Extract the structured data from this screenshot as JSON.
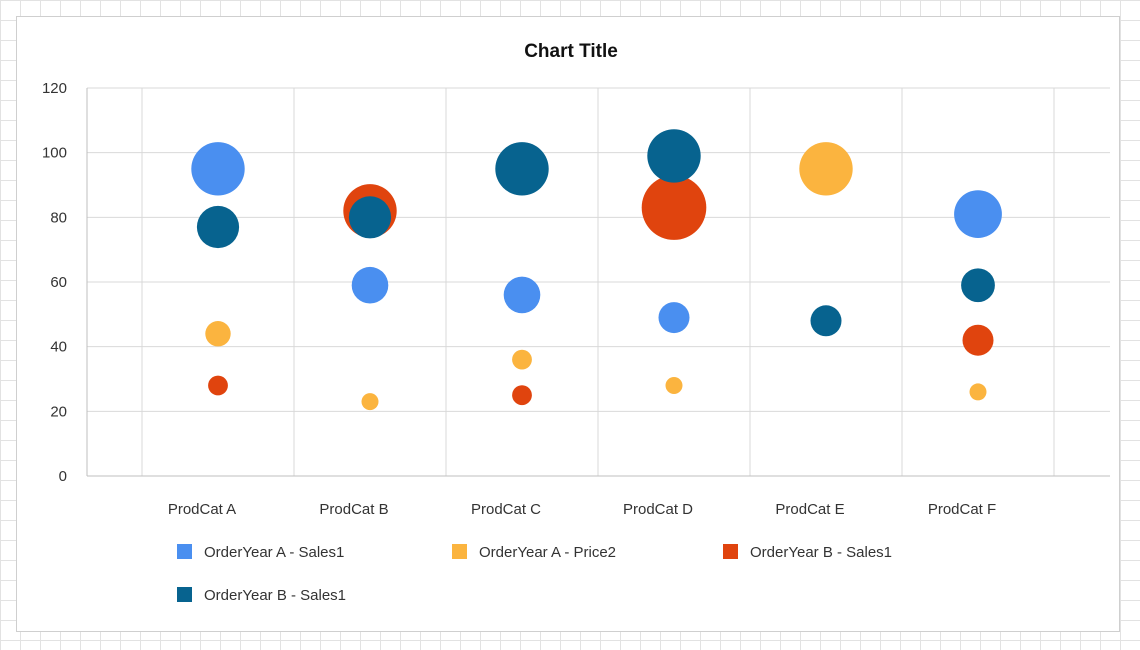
{
  "chart_data": {
    "type": "bubble",
    "title": "Chart Title",
    "categories": [
      "ProdCat A",
      "ProdCat B",
      "ProdCat C",
      "ProdCat D",
      "ProdCat E",
      "ProdCat F"
    ],
    "ylim": [
      0,
      120
    ],
    "yticks": [
      0,
      20,
      40,
      60,
      80,
      100,
      120
    ],
    "grid": true,
    "legend_position": "bottom",
    "series": [
      {
        "name": "OrderYear A - Sales1",
        "color": "#4a8ff0",
        "values": [
          95,
          59,
          56,
          49,
          null,
          81
        ],
        "sizes": [
          10,
          7,
          7,
          6,
          null,
          9
        ]
      },
      {
        "name": "OrderYear A - Price2",
        "color": "#fbb43f",
        "values": [
          44,
          23,
          36,
          28,
          95,
          26
        ],
        "sizes": [
          5,
          3.5,
          4,
          3.5,
          10,
          3.5
        ]
      },
      {
        "name": "OrderYear B - Sales1",
        "color": "#e0440e",
        "values": [
          28,
          82,
          25,
          83,
          null,
          42
        ],
        "sizes": [
          4,
          10,
          4,
          12,
          null,
          6
        ]
      },
      {
        "name": "OrderYear B - Sales1",
        "color": "#07638f",
        "values": [
          77,
          80,
          95,
          99,
          48,
          59
        ],
        "sizes": [
          8,
          8,
          10,
          10,
          6,
          6.5
        ]
      }
    ]
  }
}
